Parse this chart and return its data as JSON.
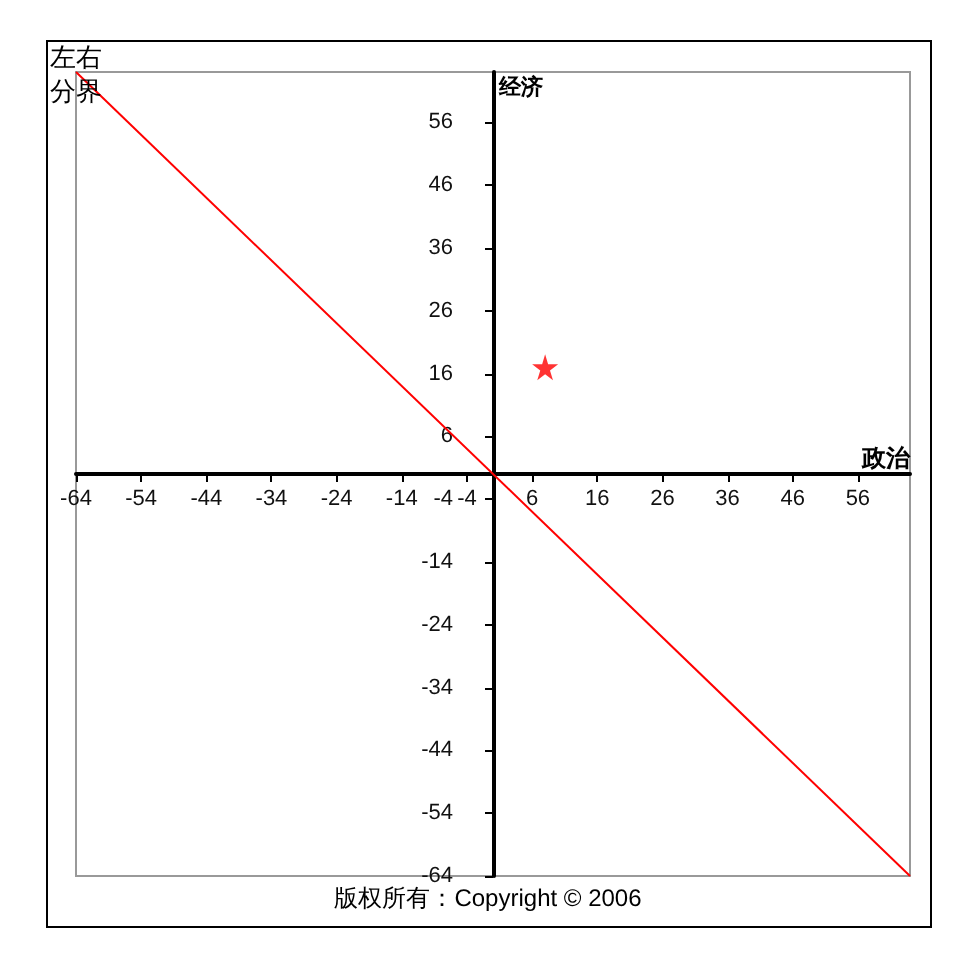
{
  "chart_data": {
    "type": "scatter",
    "xlabel": "政治",
    "ylabel": "经济",
    "xlim": [
      -64,
      64
    ],
    "ylim": [
      -64,
      64
    ],
    "xticks": [
      -64,
      -54,
      -44,
      -34,
      -24,
      -14,
      -4,
      6,
      16,
      26,
      36,
      46,
      56
    ],
    "yticks": [
      -64,
      -54,
      -44,
      -34,
      -24,
      -14,
      -4,
      6,
      16,
      26,
      36,
      46,
      56
    ],
    "annotations": [
      "版权所有：Copyright © 2006"
    ],
    "series": [
      {
        "type": "line",
        "name": "左右分界",
        "color": "#ff0000",
        "x": [
          -64,
          64
        ],
        "values": [
          64,
          -64
        ],
        "marker": "none"
      },
      {
        "type": "scatter",
        "color": "#ff0000",
        "x": [
          8
        ],
        "values": [
          17
        ],
        "marker": "star"
      }
    ]
  }
}
